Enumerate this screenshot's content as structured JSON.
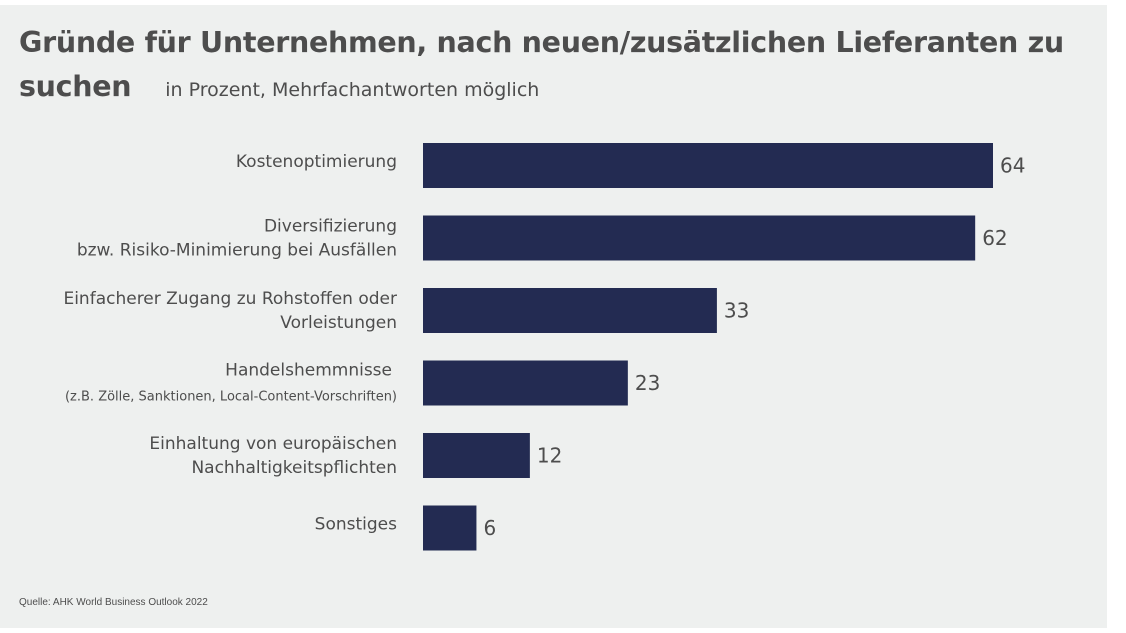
{
  "title": "Gründe für Unternehmen, nach neuen/zusätzlichen Lieferanten zu suchen",
  "subtitle": "in Prozent, Mehrfachantworten möglich",
  "source": "Quelle: AHK World Business Outlook 2022",
  "colors": {
    "bar": "#232b52",
    "background": "#eef0ef",
    "text": "#4d4d4d"
  },
  "chart_data": {
    "type": "bar",
    "orientation": "horizontal",
    "categories": [
      {
        "line1": "Kostenoptimierung",
        "line2": ""
      },
      {
        "line1": "Diversifizierung",
        "line2": "bzw. Risiko-Minimierung bei Ausfällen"
      },
      {
        "line1": "Einfacherer Zugang zu Rohstoffen oder",
        "line2": "Vorleistungen"
      },
      {
        "line1": "Handelshemmnisse",
        "line2": "(z.B. Zölle, Sanktionen, Local-Content-Vorschriften)"
      },
      {
        "line1": "Einhaltung von europäischen",
        "line2": "Nachhaltigkeitspflichten"
      },
      {
        "line1": "Sonstiges",
        "line2": ""
      }
    ],
    "values": [
      64,
      62,
      33,
      23,
      12,
      6
    ],
    "xlim": [
      0,
      64
    ],
    "grid": false,
    "legend": "none"
  }
}
